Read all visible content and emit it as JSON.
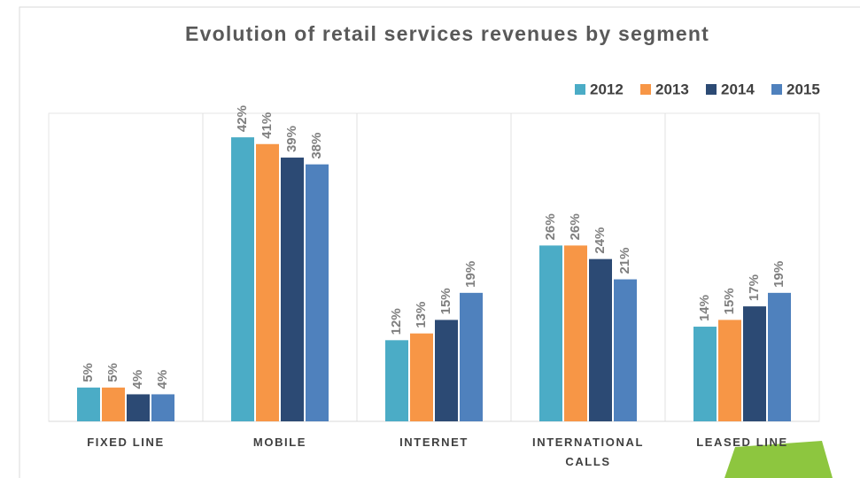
{
  "chart_data": {
    "type": "bar",
    "title": "Evolution of retail services revenues by segment",
    "categories": [
      "FIXED LINE",
      "MOBILE",
      "INTERNET",
      "INTERNATIONAL CALLS",
      "LEASED LINE"
    ],
    "series": [
      {
        "name": "2012",
        "color": "#4bacc6",
        "values": [
          5,
          42,
          12,
          26,
          14
        ],
        "value_labels": [
          "5%",
          "42%",
          "12%",
          "26%",
          "14%"
        ]
      },
      {
        "name": "2013",
        "color": "#f79646",
        "values": [
          5,
          41,
          13,
          26,
          15
        ],
        "value_labels": [
          "5%",
          "41%",
          "13%",
          "26%",
          "15%"
        ]
      },
      {
        "name": "2014",
        "color": "#2c4a74",
        "values": [
          4,
          39,
          15,
          24,
          17
        ],
        "value_labels": [
          "4%",
          "39%",
          "15%",
          "24%",
          "17%"
        ]
      },
      {
        "name": "2015",
        "color": "#4f81bd",
        "values": [
          4,
          38,
          19,
          21,
          19
        ],
        "value_labels": [
          "4%",
          "38%",
          "19%",
          "21%",
          "19%"
        ]
      }
    ],
    "legend": "top-right"
  }
}
